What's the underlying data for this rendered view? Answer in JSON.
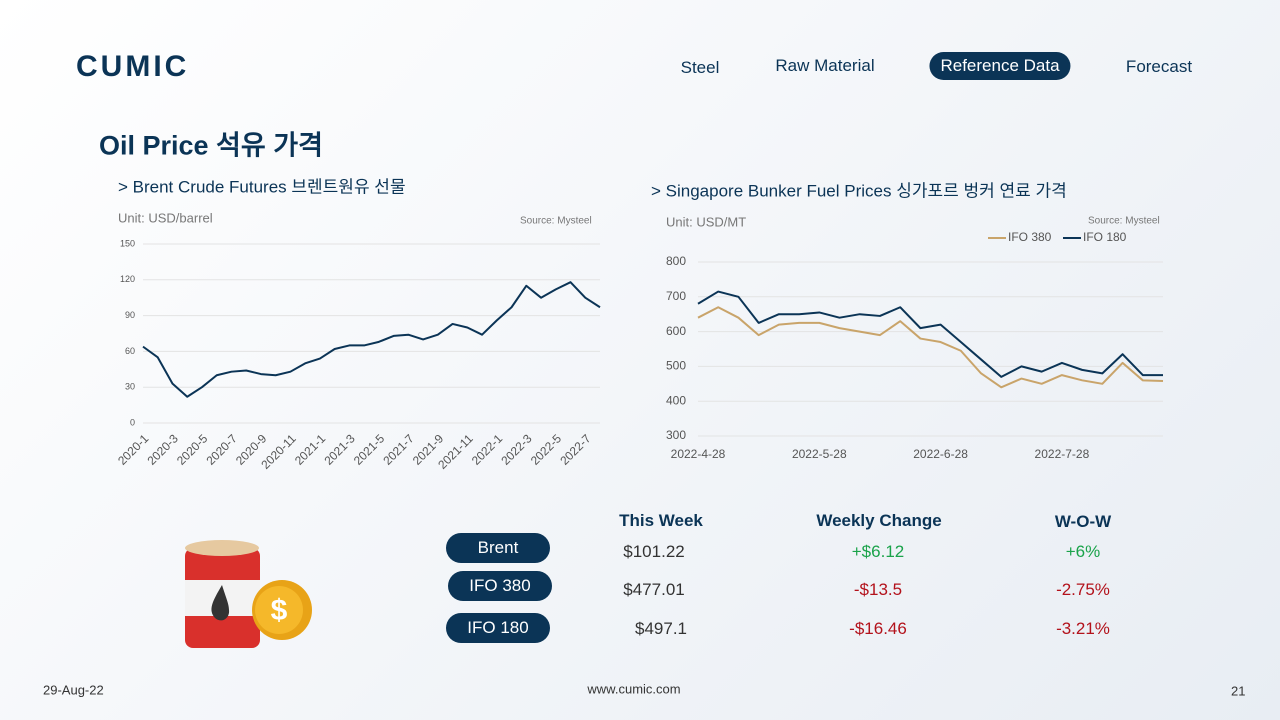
{
  "header": {
    "logo": "CUMIC",
    "nav": [
      "Steel",
      "Raw Material",
      "Reference Data",
      "Forecast"
    ],
    "title": "Oil Price 석유 가격"
  },
  "chart_data": [
    {
      "type": "line",
      "title": "> Brent Crude Futures 브렌트원유 선물",
      "unit": "Unit: USD/barrel",
      "source": "Source: Mysteel",
      "categories": [
        "2020-1",
        null,
        "2020-3",
        null,
        "2020-5",
        null,
        "2020-7",
        null,
        "2020-9",
        null,
        "2020-11",
        null,
        "2021-1",
        null,
        "2021-3",
        null,
        "2021-5",
        null,
        "2021-7",
        null,
        "2021-9",
        null,
        "2021-11",
        null,
        "2022-1",
        null,
        "2022-3",
        null,
        "2022-5",
        null,
        "2022-7",
        null
      ],
      "values": [
        64,
        55,
        33,
        22,
        30,
        40,
        43,
        44,
        41,
        40,
        43,
        50,
        54,
        62,
        65,
        65,
        68,
        73,
        74,
        70,
        74,
        83,
        80,
        74,
        86,
        97,
        115,
        105,
        112,
        118,
        105,
        97
      ],
      "color": "#0b3456",
      "ylim": [
        0,
        150
      ],
      "yticks": [
        0,
        30,
        60,
        90,
        120,
        150
      ],
      "grid": true
    },
    {
      "type": "line",
      "title": "> Singapore Bunker Fuel Prices  싱가포르 벙커 연료 가격",
      "unit": "Unit: USD/MT",
      "source": "Source: Mysteel",
      "categories": [
        "2022-4-28",
        null,
        null,
        null,
        null,
        null,
        "2022-5-28",
        null,
        null,
        null,
        null,
        null,
        "2022-6-28",
        null,
        null,
        null,
        null,
        null,
        "2022-7-28",
        null,
        null,
        null,
        null,
        null
      ],
      "series": [
        {
          "name": "IFO 380",
          "color": "#c9a46a",
          "values": [
            640,
            670,
            640,
            590,
            620,
            625,
            625,
            610,
            600,
            590,
            630,
            580,
            570,
            545,
            480,
            440,
            465,
            450,
            475,
            460,
            450,
            510,
            460,
            458
          ]
        },
        {
          "name": "IFO 180",
          "color": "#0b3456",
          "values": [
            680,
            715,
            700,
            625,
            650,
            650,
            655,
            640,
            650,
            645,
            670,
            610,
            620,
            570,
            520,
            470,
            500,
            485,
            510,
            490,
            480,
            535,
            475,
            475
          ]
        }
      ],
      "ylim": [
        300,
        800
      ],
      "yticks": [
        300,
        400,
        500,
        600,
        700,
        800
      ],
      "grid": true,
      "legend": "top-right"
    }
  ],
  "table": {
    "header": [
      "This Week",
      "Weekly Change",
      "W-O-W"
    ],
    "rows": [
      [
        "Brent",
        "$101.22",
        "+$6.12",
        "+6%"
      ],
      [
        "IFO 380",
        "$477.01",
        "-$13.5",
        "-2.75%"
      ],
      [
        "IFO 180",
        "$497.1",
        "-$16.46",
        "-3.21%"
      ]
    ]
  },
  "footer": {
    "date": "29-Aug-22",
    "url": "www.cumic.com",
    "page": "21"
  }
}
